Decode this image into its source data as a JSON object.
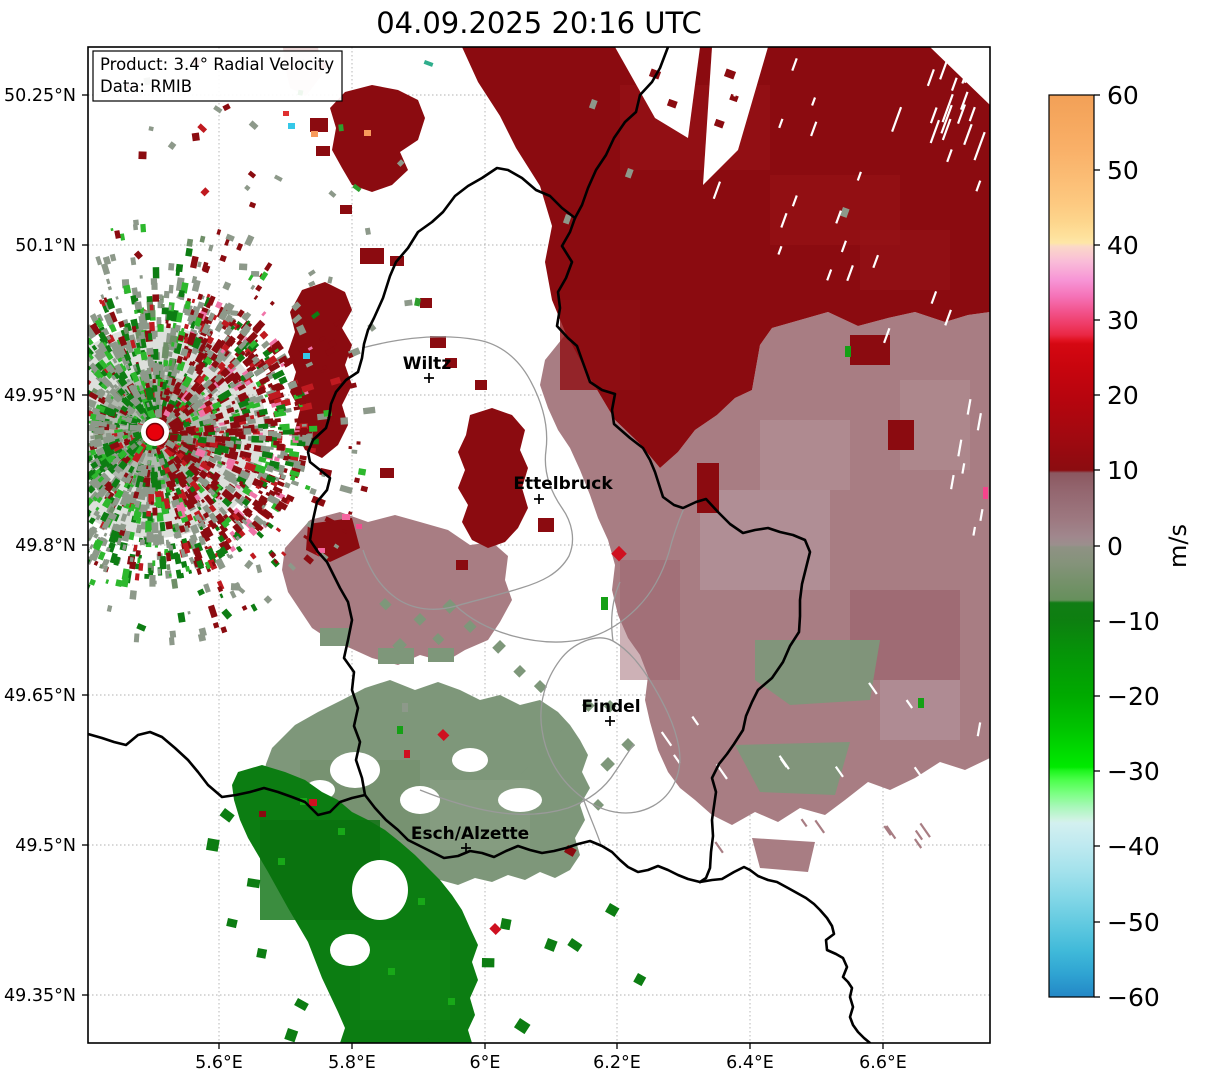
{
  "title": "04.09.2025 20:16 UTC",
  "info_box": {
    "line1": "Product: 3.4° Radial Velocity",
    "line2": "Data: RMIB"
  },
  "axes": {
    "lat_ticks": [
      "50.25°N",
      "50.1°N",
      "49.95°N",
      "49.8°N",
      "49.65°N",
      "49.5°N",
      "49.35°N"
    ],
    "lon_ticks": [
      "5.6°E",
      "5.8°E",
      "6°E",
      "6.2°E",
      "6.4°E",
      "6.6°E"
    ]
  },
  "cities": [
    {
      "name": "Wiltz"
    },
    {
      "name": "Ettelbruck"
    },
    {
      "name": "Findel"
    },
    {
      "name": "Esch/Alzette"
    }
  ],
  "colorbar": {
    "unit": "m/s",
    "ticks": [
      "60",
      "50",
      "40",
      "30",
      "20",
      "10",
      "0",
      "−10",
      "−20",
      "−30",
      "−40",
      "−50",
      "−60"
    ]
  },
  "chart_data": {
    "type": "heatmap",
    "title": "04.09.2025 20:16 UTC",
    "product": "3.4° Radial Velocity",
    "data_source": "RMIB",
    "unit": "m/s",
    "colorbar_range": [
      -60,
      60
    ],
    "colorbar_ticks": [
      60,
      50,
      40,
      30,
      20,
      10,
      0,
      -10,
      -20,
      -30,
      -40,
      -50,
      -60
    ],
    "lon_range_deg_east": [
      5.4,
      6.76
    ],
    "lat_range_deg_north": [
      49.3,
      50.3
    ],
    "grid": true,
    "legend_position": "right-colorbar",
    "radar_site": {
      "lon": 5.5,
      "lat": 49.91,
      "marker": "red-dot"
    },
    "cities": [
      {
        "name": "Wiltz",
        "lon": 5.92,
        "lat": 49.97
      },
      {
        "name": "Ettelbruck",
        "lon": 6.08,
        "lat": 49.85
      },
      {
        "name": "Findel",
        "lon": 6.19,
        "lat": 49.62
      },
      {
        "name": "Esch/Alzette",
        "lon": 5.97,
        "lat": 49.5
      }
    ],
    "velocity_regions": [
      {
        "area": "north-east quadrant",
        "value_m_s": "10 to 25 (away from radar)",
        "color": "dark red"
      },
      {
        "area": "east / south-east",
        "value_m_s": "2 to 8",
        "color": "grey-mauve"
      },
      {
        "area": "centre-south around Esch/Alzette",
        "value_m_s": "-2 to -6",
        "color": "grey-green"
      },
      {
        "area": "south-west",
        "value_m_s": "-8 to -18 (toward radar)",
        "color": "dark green"
      },
      {
        "area": "around radar site (west)",
        "value_m_s": "noisy mix -20 to +20",
        "color": "speckled green/red/grey"
      },
      {
        "area": "centre corridor Wiltz-Ettelbruck-Findel",
        "value_m_s": "no echo",
        "color": "white"
      }
    ]
  }
}
